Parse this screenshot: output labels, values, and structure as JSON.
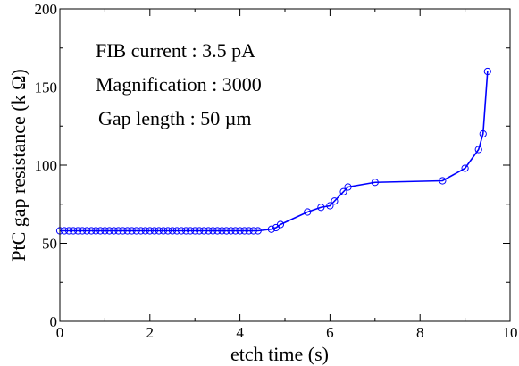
{
  "chart_data": {
    "type": "line",
    "title": "",
    "xlabel": "etch time (s)",
    "ylabel": "PtC gap resistance (k Ω)",
    "xlim": [
      0,
      10
    ],
    "ylim": [
      0,
      200
    ],
    "x_ticks": [
      0,
      2,
      4,
      6,
      8,
      10
    ],
    "y_ticks": [
      0,
      50,
      100,
      150,
      200
    ],
    "grid": false,
    "legend": "none",
    "annotations": [
      "FIB current : 3.5 pA",
      "Magnification : 3000",
      "Gap length : 50 µm"
    ],
    "series": [
      {
        "color": "#0000ff",
        "marker": "open-circle",
        "x": [
          0.0,
          0.1,
          0.2,
          0.3,
          0.4,
          0.5,
          0.6,
          0.7,
          0.8,
          0.9,
          1.0,
          1.1,
          1.2,
          1.3,
          1.4,
          1.5,
          1.6,
          1.7,
          1.8,
          1.9,
          2.0,
          2.1,
          2.2,
          2.3,
          2.4,
          2.5,
          2.6,
          2.7,
          2.8,
          2.9,
          3.0,
          3.1,
          3.2,
          3.3,
          3.4,
          3.5,
          3.6,
          3.7,
          3.8,
          3.9,
          4.0,
          4.1,
          4.2,
          4.3,
          4.4,
          4.7,
          4.8,
          4.9,
          5.5,
          5.8,
          6.0,
          6.1,
          6.3,
          6.4,
          7.0,
          8.5,
          9.0,
          9.3,
          9.4,
          9.5
        ],
        "y": [
          58,
          58,
          58,
          58,
          58,
          58,
          58,
          58,
          58,
          58,
          58,
          58,
          58,
          58,
          58,
          58,
          58,
          58,
          58,
          58,
          58,
          58,
          58,
          58,
          58,
          58,
          58,
          58,
          58,
          58,
          58,
          58,
          58,
          58,
          58,
          58,
          58,
          58,
          58,
          58,
          58,
          58,
          58,
          58,
          58,
          59,
          60,
          62,
          70,
          73,
          74,
          77,
          83,
          86,
          89,
          90,
          98,
          110,
          120,
          160
        ]
      }
    ]
  }
}
